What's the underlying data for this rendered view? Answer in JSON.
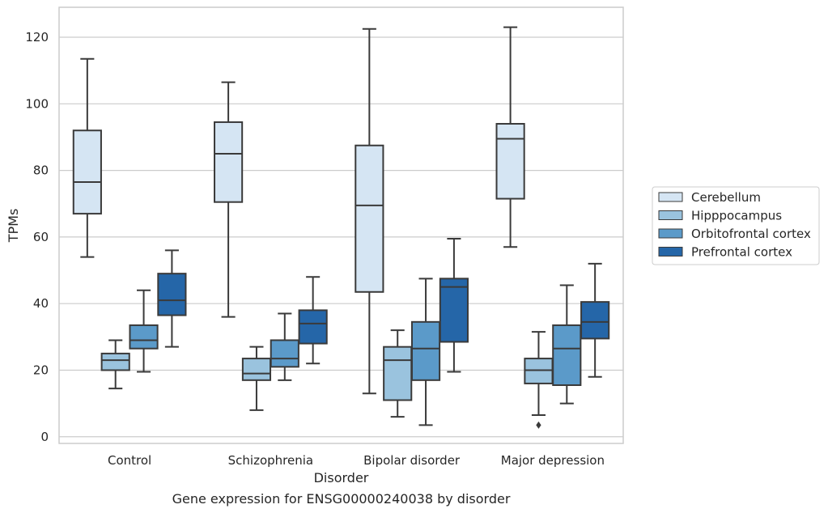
{
  "caption": "Gene expression for ENSG00000240038 by disorder",
  "chart_data": {
    "type": "boxplot",
    "xlabel": "Disorder",
    "ylabel": "TPMs",
    "ylim": [
      -2,
      129
    ],
    "yticks": [
      0,
      20,
      40,
      60,
      80,
      100,
      120
    ],
    "grid": true,
    "legend_position": "right",
    "categories": [
      "Control",
      "Schizophrenia",
      "Bipolar disorder",
      "Major depression"
    ],
    "series": [
      {
        "name": "Cerebellum",
        "color": "#d5e5f3",
        "boxes": [
          {
            "whisker_low": 54,
            "q1": 67,
            "median": 76.5,
            "q3": 92,
            "whisker_high": 113.5,
            "outliers": []
          },
          {
            "whisker_low": 36,
            "q1": 70.5,
            "median": 85,
            "q3": 94.5,
            "whisker_high": 106.5,
            "outliers": []
          },
          {
            "whisker_low": 13,
            "q1": 43.5,
            "median": 69.5,
            "q3": 87.5,
            "whisker_high": 122.5,
            "outliers": []
          },
          {
            "whisker_low": 57,
            "q1": 71.5,
            "median": 89.5,
            "q3": 94,
            "whisker_high": 123,
            "outliers": []
          }
        ]
      },
      {
        "name": "Hipppocampus",
        "color": "#9ac3de",
        "boxes": [
          {
            "whisker_low": 14.5,
            "q1": 20,
            "median": 23,
            "q3": 25,
            "whisker_high": 29,
            "outliers": []
          },
          {
            "whisker_low": 8,
            "q1": 17,
            "median": 19,
            "q3": 23.5,
            "whisker_high": 27,
            "outliers": []
          },
          {
            "whisker_low": 6,
            "q1": 11,
            "median": 23,
            "q3": 27,
            "whisker_high": 32,
            "outliers": []
          },
          {
            "whisker_low": 6.5,
            "q1": 16,
            "median": 20,
            "q3": 23.5,
            "whisker_high": 31.5,
            "outliers": [
              3.5
            ]
          }
        ]
      },
      {
        "name": "Orbitofrontal cortex",
        "color": "#5b9ac9",
        "boxes": [
          {
            "whisker_low": 19.5,
            "q1": 26.5,
            "median": 29,
            "q3": 33.5,
            "whisker_high": 44,
            "outliers": []
          },
          {
            "whisker_low": 17,
            "q1": 21,
            "median": 23.5,
            "q3": 29,
            "whisker_high": 37,
            "outliers": []
          },
          {
            "whisker_low": 3.5,
            "q1": 17,
            "median": 26.5,
            "q3": 34.5,
            "whisker_high": 47.5,
            "outliers": []
          },
          {
            "whisker_low": 10,
            "q1": 15.5,
            "median": 26.5,
            "q3": 33.5,
            "whisker_high": 45.5,
            "outliers": []
          }
        ]
      },
      {
        "name": "Prefrontal cortex",
        "color": "#2566a8",
        "boxes": [
          {
            "whisker_low": 27,
            "q1": 36.5,
            "median": 41,
            "q3": 49,
            "whisker_high": 56,
            "outliers": []
          },
          {
            "whisker_low": 22,
            "q1": 28,
            "median": 34,
            "q3": 38,
            "whisker_high": 48,
            "outliers": []
          },
          {
            "whisker_low": 19.5,
            "q1": 28.5,
            "median": 45,
            "q3": 47.5,
            "whisker_high": 59.5,
            "outliers": []
          },
          {
            "whisker_low": 18,
            "q1": 29.5,
            "median": 34.5,
            "q3": 40.5,
            "whisker_high": 52,
            "outliers": []
          }
        ]
      }
    ]
  }
}
